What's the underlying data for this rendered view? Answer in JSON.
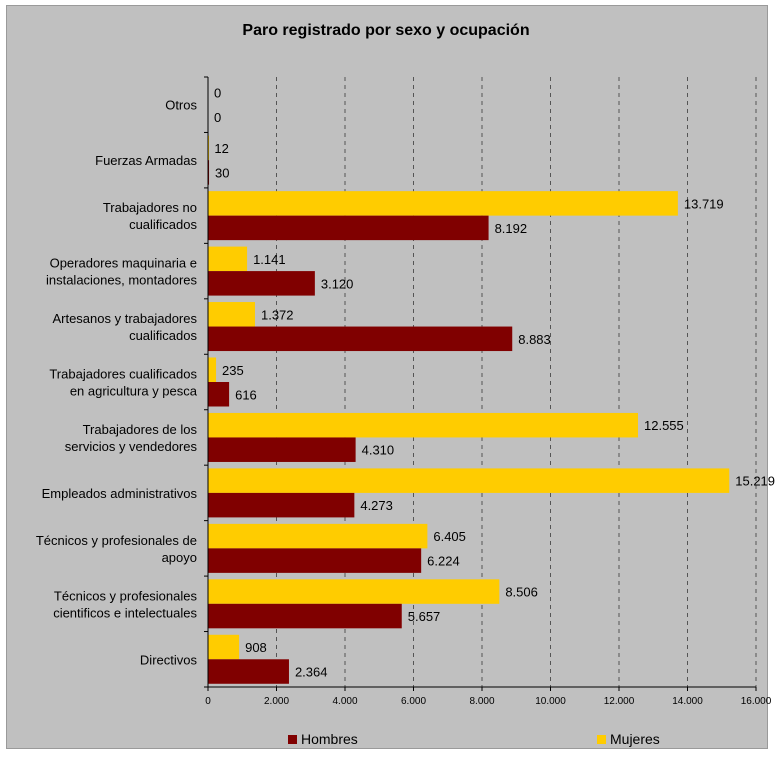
{
  "chart_data": {
    "type": "bar",
    "orientation": "horizontal",
    "title": "Paro registrado por sexo y ocupación",
    "categories": [
      "Otros",
      "Fuerzas Armadas",
      "Trabajadores no cualificados",
      "Operadores maquinaria e instalaciones, montadores",
      "Artesanos y trabajadores cualificados",
      "Trabajadores cualificados en agricultura y pesca",
      "Trabajadores de los servicios y vendedores",
      "Empleados administrativos",
      "Técnicos y profesionales de apoyo",
      "Técnicos y profesionales cientificos e intelectuales",
      "Directivos"
    ],
    "category_lines": [
      [
        "Otros"
      ],
      [
        "Fuerzas Armadas"
      ],
      [
        "Trabajadores no",
        "cualificados"
      ],
      [
        "Operadores maquinaria e",
        "instalaciones, montadores"
      ],
      [
        "Artesanos y trabajadores",
        "cualificados"
      ],
      [
        "Trabajadores cualificados",
        "en agricultura y pesca"
      ],
      [
        "Trabajadores de los",
        "servicios y vendedores"
      ],
      [
        "Empleados administrativos"
      ],
      [
        "Técnicos y profesionales de",
        "apoyo"
      ],
      [
        "Técnicos y profesionales",
        "cientificos e intelectuales"
      ],
      [
        "Directivos"
      ]
    ],
    "series": [
      {
        "name": "Mujeres",
        "color": "#ffcc00",
        "values": [
          0,
          12,
          13719,
          1141,
          1372,
          235,
          12555,
          15219,
          6405,
          8506,
          908
        ],
        "labels": [
          "0",
          "12",
          "13.719",
          "1.141",
          "1.372",
          "235",
          "12.555",
          "15.219",
          "6.405",
          "8.506",
          "908"
        ]
      },
      {
        "name": "Hombres",
        "color": "#800000",
        "values": [
          0,
          30,
          8192,
          3120,
          8883,
          616,
          4310,
          4273,
          6224,
          5657,
          2364
        ],
        "labels": [
          "0",
          "30",
          "8.192",
          "3.120",
          "8.883",
          "616",
          "4.310",
          "4.273",
          "6.224",
          "5.657",
          "2.364"
        ]
      }
    ],
    "xlim": [
      0,
      16000
    ],
    "x_ticks": [
      0,
      2000,
      4000,
      6000,
      8000,
      10000,
      12000,
      14000,
      16000
    ],
    "x_tick_labels": [
      "0",
      "2.000",
      "4.000",
      "6.000",
      "8.000",
      "10.000",
      "12.000",
      "14.000",
      "16.000"
    ],
    "grid": "vertical dashed",
    "legend_position": "bottom",
    "legend": [
      "Hombres",
      "Mujeres"
    ],
    "xlabel": "",
    "ylabel": ""
  }
}
